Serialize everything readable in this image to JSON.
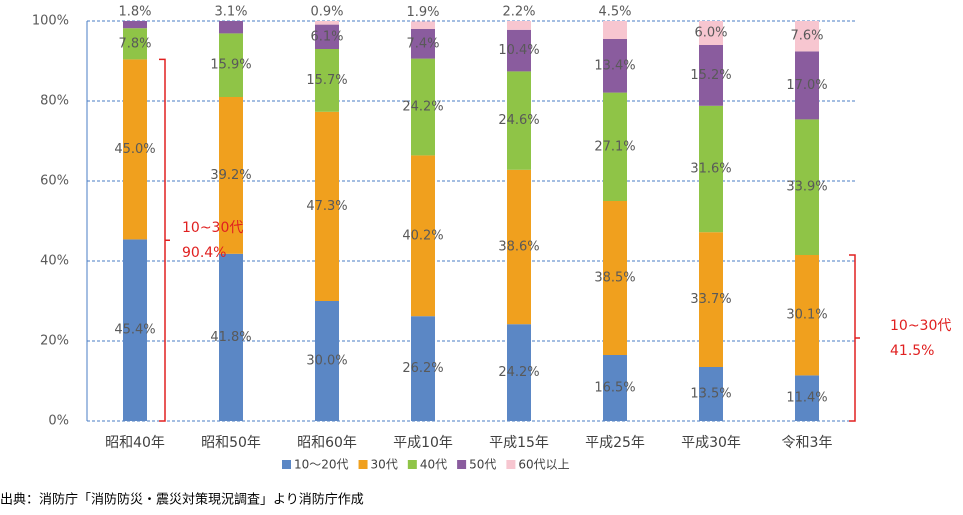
{
  "chart_data": {
    "type": "stacked_bar",
    "categories": [
      "昭和40年",
      "昭和50年",
      "昭和60年",
      "平成10年",
      "平成15年",
      "平成25年",
      "平成30年",
      "令和3年"
    ],
    "series": [
      {
        "name": "10～20代",
        "color": "#5b87c5",
        "values": [
          45.4,
          41.8,
          30.0,
          26.2,
          24.2,
          16.5,
          13.5,
          11.4
        ],
        "value_labels": [
          "45.4%",
          "41.8%",
          "30.0%",
          "26.2%",
          "24.2%",
          "16.5%",
          "13.5%",
          "11.4%"
        ]
      },
      {
        "name": "30代",
        "color": "#f0a01e",
        "values": [
          45.0,
          39.2,
          47.3,
          40.2,
          38.6,
          38.5,
          33.7,
          30.1
        ],
        "value_labels": [
          "45.0%",
          "39.2%",
          "47.3%",
          "40.2%",
          "38.6%",
          "38.5%",
          "33.7%",
          "30.1%"
        ]
      },
      {
        "name": "40代",
        "color": "#8fc447",
        "values": [
          7.8,
          15.9,
          15.7,
          24.2,
          24.6,
          27.1,
          31.6,
          33.9
        ],
        "value_labels": [
          "7.8%",
          "15.9%",
          "15.7%",
          "24.2%",
          "24.6%",
          "27.1%",
          "31.6%",
          "33.9%"
        ]
      },
      {
        "name": "50代",
        "color": "#8a5c9e",
        "values": [
          1.8,
          3.1,
          6.1,
          7.4,
          10.4,
          13.4,
          15.2,
          17.0
        ],
        "value_labels": [
          "1.8%",
          "3.1%",
          "6.1%",
          "7.4%",
          "10.4%",
          "13.4%",
          "15.2%",
          "17.0%"
        ]
      },
      {
        "name": "60代以上",
        "color": "#f7c6d0",
        "values": [
          null,
          null,
          0.9,
          1.9,
          2.2,
          4.5,
          6.0,
          7.6
        ],
        "value_labels": [
          null,
          null,
          "0.9%",
          "1.9%",
          "2.2%",
          "4.5%",
          "6.0%",
          "7.6%"
        ]
      }
    ],
    "ylim": [
      0,
      100
    ],
    "yticks": [
      {
        "value": 0,
        "label": "0%"
      },
      {
        "value": 20,
        "label": "20%"
      },
      {
        "value": 40,
        "label": "40%"
      },
      {
        "value": 60,
        "label": "60%"
      },
      {
        "value": 80,
        "label": "80%"
      },
      {
        "value": 100,
        "label": "100%"
      }
    ],
    "grid": true,
    "annotations": [
      {
        "label": "10~30代",
        "value": "90.4%"
      },
      {
        "label": "10~30代",
        "value": "41.5%"
      }
    ],
    "source": "出典：消防庁「消防防災・震災対策現況調査」より消防庁作成"
  }
}
